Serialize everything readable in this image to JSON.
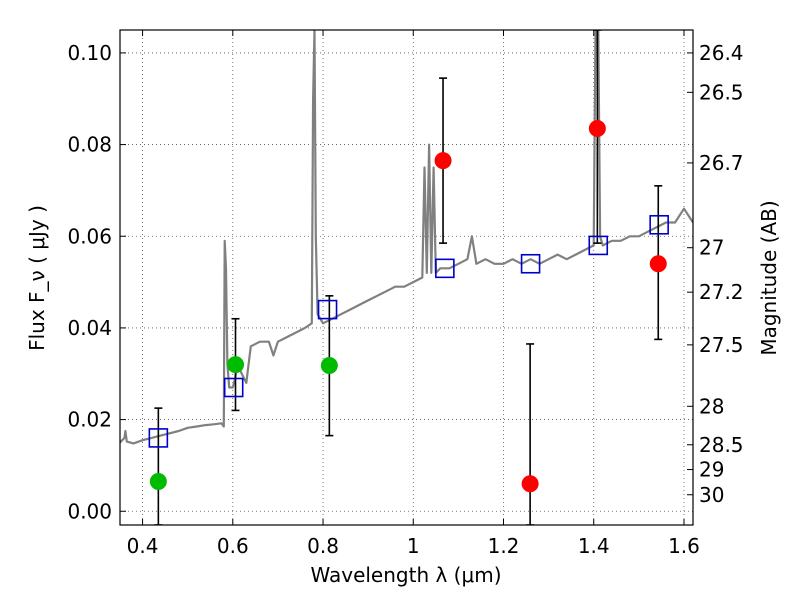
{
  "chart_data": {
    "type": "scatter",
    "xlabel": "Wavelength  λ (μm)",
    "ylabel": "Flux  F_ν  ( μJy )",
    "y2label": "Magnitude (AB)",
    "xlim": [
      0.35,
      1.62
    ],
    "ylim": [
      -0.003,
      0.105
    ],
    "grid": true,
    "x_ticks": [
      {
        "v": 0.4,
        "label": "0.4"
      },
      {
        "v": 0.6,
        "label": "0.6"
      },
      {
        "v": 0.8,
        "label": "0.8"
      },
      {
        "v": 1.0,
        "label": "1"
      },
      {
        "v": 1.2,
        "label": "1.2"
      },
      {
        "v": 1.4,
        "label": "1.4"
      },
      {
        "v": 1.6,
        "label": "1.6"
      }
    ],
    "y_ticks": [
      {
        "v": 0.0,
        "label": "0.00"
      },
      {
        "v": 0.02,
        "label": "0.02"
      },
      {
        "v": 0.04,
        "label": "0.04"
      },
      {
        "v": 0.06,
        "label": "0.06"
      },
      {
        "v": 0.08,
        "label": "0.08"
      },
      {
        "v": 0.1,
        "label": "0.10"
      }
    ],
    "y2_ticks": [
      {
        "flux": 0.1,
        "label": "26.4"
      },
      {
        "flux": 0.0914,
        "label": "26.5"
      },
      {
        "flux": 0.076,
        "label": "26.7"
      },
      {
        "flux": 0.0575,
        "label": "27"
      },
      {
        "flux": 0.0478,
        "label": "27.2"
      },
      {
        "flux": 0.0363,
        "label": "27.5"
      },
      {
        "flux": 0.0229,
        "label": "28"
      },
      {
        "flux": 0.0145,
        "label": "28.5"
      },
      {
        "flux": 0.0091,
        "label": "29"
      },
      {
        "flux": 0.0036,
        "label": "30"
      }
    ],
    "series": [
      {
        "type": "line",
        "color": "#808080",
        "points": [
          [
            0.35,
            0.015
          ],
          [
            0.36,
            0.016
          ],
          [
            0.362,
            0.0175
          ],
          [
            0.365,
            0.0152
          ],
          [
            0.38,
            0.0148
          ],
          [
            0.4,
            0.0155
          ],
          [
            0.42,
            0.016
          ],
          [
            0.44,
            0.0165
          ],
          [
            0.46,
            0.017
          ],
          [
            0.48,
            0.0175
          ],
          [
            0.5,
            0.0182
          ],
          [
            0.52,
            0.0185
          ],
          [
            0.54,
            0.0188
          ],
          [
            0.56,
            0.019
          ],
          [
            0.575,
            0.0192
          ],
          [
            0.58,
            0.0185
          ],
          [
            0.582,
            0.059
          ],
          [
            0.585,
            0.053
          ],
          [
            0.588,
            0.032
          ],
          [
            0.592,
            0.027
          ],
          [
            0.6,
            0.027
          ],
          [
            0.605,
            0.029
          ],
          [
            0.61,
            0.032
          ],
          [
            0.62,
            0.03
          ],
          [
            0.63,
            0.028
          ],
          [
            0.64,
            0.036
          ],
          [
            0.66,
            0.037
          ],
          [
            0.68,
            0.037
          ],
          [
            0.69,
            0.034
          ],
          [
            0.7,
            0.037
          ],
          [
            0.72,
            0.038
          ],
          [
            0.74,
            0.039
          ],
          [
            0.76,
            0.04
          ],
          [
            0.775,
            0.041
          ],
          [
            0.778,
            0.09
          ],
          [
            0.781,
            0.105
          ],
          [
            0.784,
            0.06
          ],
          [
            0.788,
            0.043
          ],
          [
            0.8,
            0.041
          ],
          [
            0.82,
            0.042
          ],
          [
            0.84,
            0.043
          ],
          [
            0.86,
            0.044
          ],
          [
            0.88,
            0.045
          ],
          [
            0.9,
            0.046
          ],
          [
            0.92,
            0.047
          ],
          [
            0.94,
            0.048
          ],
          [
            0.96,
            0.049
          ],
          [
            0.98,
            0.049
          ],
          [
            1.0,
            0.05
          ],
          [
            1.02,
            0.051
          ],
          [
            1.025,
            0.075
          ],
          [
            1.03,
            0.052
          ],
          [
            1.035,
            0.08
          ],
          [
            1.04,
            0.052
          ],
          [
            1.045,
            0.075
          ],
          [
            1.05,
            0.052
          ],
          [
            1.06,
            0.053
          ],
          [
            1.08,
            0.053
          ],
          [
            1.1,
            0.054
          ],
          [
            1.12,
            0.055
          ],
          [
            1.13,
            0.06
          ],
          [
            1.14,
            0.054
          ],
          [
            1.16,
            0.055
          ],
          [
            1.18,
            0.054
          ],
          [
            1.2,
            0.054
          ],
          [
            1.22,
            0.055
          ],
          [
            1.24,
            0.054
          ],
          [
            1.26,
            0.055
          ],
          [
            1.28,
            0.054
          ],
          [
            1.3,
            0.055
          ],
          [
            1.32,
            0.056
          ],
          [
            1.34,
            0.055
          ],
          [
            1.36,
            0.056
          ],
          [
            1.38,
            0.057
          ],
          [
            1.4,
            0.058
          ],
          [
            1.404,
            0.105
          ],
          [
            1.41,
            0.105
          ],
          [
            1.414,
            0.06
          ],
          [
            1.42,
            0.058
          ],
          [
            1.44,
            0.059
          ],
          [
            1.46,
            0.059
          ],
          [
            1.48,
            0.06
          ],
          [
            1.5,
            0.06
          ],
          [
            1.52,
            0.061
          ],
          [
            1.54,
            0.062
          ],
          [
            1.56,
            0.063
          ],
          [
            1.58,
            0.063
          ],
          [
            1.6,
            0.066
          ],
          [
            1.62,
            0.063
          ]
        ]
      },
      {
        "type": "model_points",
        "marker": "open-square",
        "color": "#0000cc",
        "points": [
          [
            0.435,
            0.016
          ],
          [
            0.602,
            0.027
          ],
          [
            0.81,
            0.044
          ],
          [
            1.07,
            0.053
          ],
          [
            1.26,
            0.054
          ],
          [
            1.41,
            0.058
          ],
          [
            1.545,
            0.0625
          ]
        ]
      },
      {
        "type": "observed",
        "marker": "filled-circle",
        "color": "#00bb00",
        "points": [
          {
            "x": 0.435,
            "y": 0.0065,
            "lo": -0.003,
            "hi": 0.0225
          },
          {
            "x": 0.606,
            "y": 0.032,
            "lo": 0.022,
            "hi": 0.042
          },
          {
            "x": 0.814,
            "y": 0.0318,
            "lo": 0.0165,
            "hi": 0.047
          }
        ]
      },
      {
        "type": "observed",
        "marker": "filled-circle",
        "color": "#ff0000",
        "points": [
          {
            "x": 1.066,
            "y": 0.0765,
            "lo": 0.0585,
            "hi": 0.0945
          },
          {
            "x": 1.259,
            "y": 0.006,
            "lo": -0.003,
            "hi": 0.0365
          },
          {
            "x": 1.408,
            "y": 0.0835,
            "lo": 0.0585,
            "hi": 0.105
          },
          {
            "x": 1.543,
            "y": 0.054,
            "lo": 0.0375,
            "hi": 0.071
          }
        ]
      }
    ]
  }
}
